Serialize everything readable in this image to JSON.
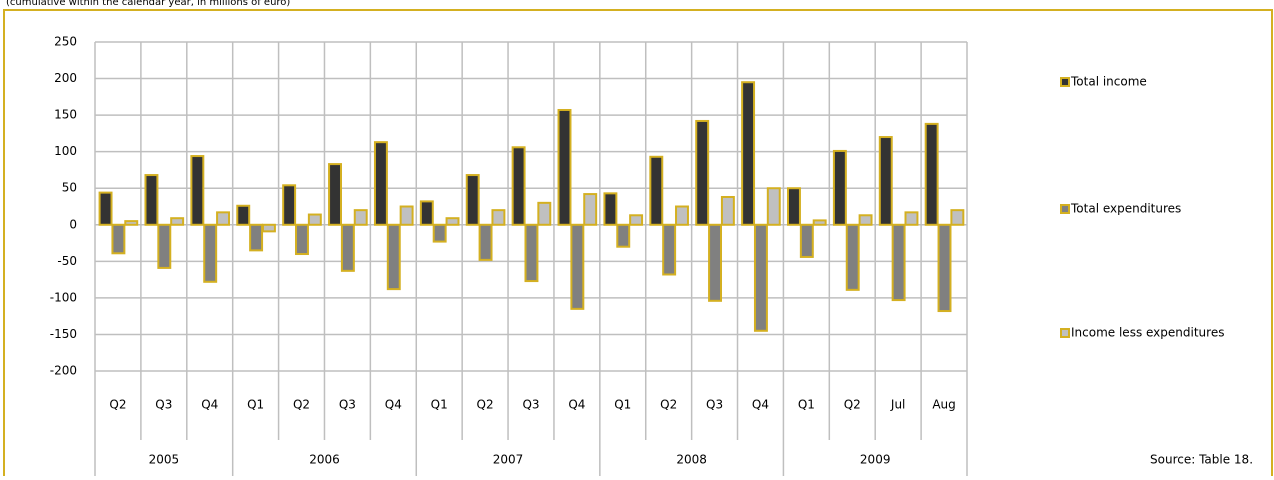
{
  "chart_data": {
    "type": "bar",
    "subtitle": "(cumulative within the calendar year, in millions of euro)",
    "categories": [
      "Q2",
      "Q3",
      "Q4",
      "Q1",
      "Q2",
      "Q3",
      "Q4",
      "Q1",
      "Q2",
      "Q3",
      "Q4",
      "Q1",
      "Q2",
      "Q3",
      "Q4",
      "Q1",
      "Q2",
      "Jul",
      "Aug"
    ],
    "groups": [
      {
        "label": "2005",
        "span": 3
      },
      {
        "label": "2006",
        "span": 4
      },
      {
        "label": "2007",
        "span": 4
      },
      {
        "label": "2008",
        "span": 4
      },
      {
        "label": "2009",
        "span": 4
      }
    ],
    "series": [
      {
        "name": "Total income",
        "color": "#333333",
        "values": [
          44,
          68,
          94,
          26,
          54,
          83,
          113,
          32,
          68,
          106,
          157,
          43,
          93,
          142,
          195,
          50,
          101,
          120,
          138
        ]
      },
      {
        "name": "Total expenditures",
        "color": "#808080",
        "values": [
          -39,
          -59,
          -78,
          -35,
          -40,
          -63,
          -88,
          -23,
          -48,
          -77,
          -115,
          -30,
          -68,
          -104,
          -145,
          -44,
          -89,
          -103,
          -118
        ]
      },
      {
        "name": "Income less expenditures",
        "color": "#c0c0c0",
        "values": [
          5,
          9,
          17,
          -9,
          14,
          20,
          25,
          9,
          20,
          30,
          42,
          13,
          25,
          38,
          50,
          6,
          13,
          17,
          20
        ]
      }
    ],
    "bar_outline": "#d4b021",
    "ylim": [
      -200,
      250
    ],
    "yticks": [
      -200,
      -150,
      -100,
      -50,
      0,
      50,
      100,
      150,
      200,
      250
    ],
    "grid": true,
    "legend": "right",
    "source": "Source: Table 18."
  }
}
